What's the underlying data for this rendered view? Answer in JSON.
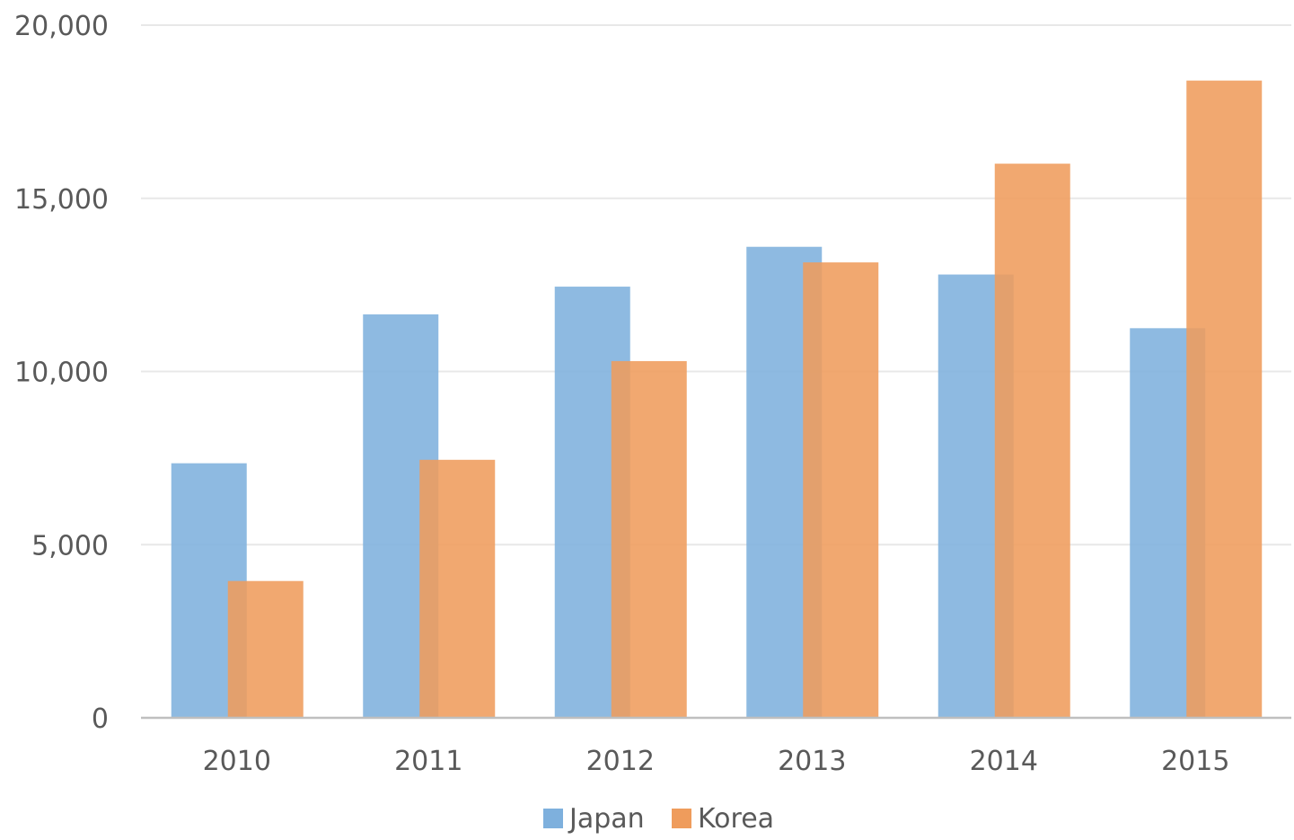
{
  "chart_data": {
    "type": "bar",
    "title": "",
    "xlabel": "",
    "ylabel": "",
    "categories": [
      "2010",
      "2011",
      "2012",
      "2013",
      "2014",
      "2015"
    ],
    "series": [
      {
        "name": "Japan",
        "color": "#7eb0dd",
        "values": [
          7350,
          11650,
          12450,
          13600,
          12800,
          11250
        ]
      },
      {
        "name": "Korea",
        "color": "#ef9c5c",
        "values": [
          3950,
          7450,
          10300,
          13150,
          16000,
          18400
        ]
      }
    ],
    "ylim": [
      0,
      20000
    ],
    "yticks": [
      0,
      5000,
      10000,
      15000,
      20000
    ],
    "ytick_labels": [
      "0",
      "5,000",
      "10,000",
      "15,000",
      "20,000"
    ],
    "grid": true,
    "legend_position": "bottom-center",
    "bars_overlap": true
  }
}
